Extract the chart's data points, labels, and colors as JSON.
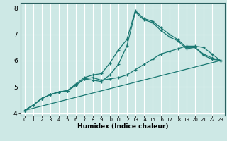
{
  "xlabel": "Humidex (Indice chaleur)",
  "background_color": "#cde8e5",
  "grid_color": "#ffffff",
  "line_color": "#1a7872",
  "xlim": [
    -0.5,
    23.5
  ],
  "ylim": [
    3.9,
    8.2
  ],
  "xticks": [
    0,
    1,
    2,
    3,
    4,
    5,
    6,
    7,
    8,
    9,
    10,
    11,
    12,
    13,
    14,
    15,
    16,
    17,
    18,
    19,
    20,
    21,
    22,
    23
  ],
  "yticks": [
    4,
    5,
    6,
    7,
    8
  ],
  "line1": {
    "x": [
      0,
      1,
      2,
      3,
      4,
      5,
      6,
      7,
      8,
      9,
      10,
      11,
      12,
      13,
      14,
      15,
      16,
      17,
      18,
      19,
      20,
      21,
      22,
      23
    ],
    "y": [
      4.1,
      4.3,
      4.55,
      4.7,
      4.8,
      4.85,
      5.05,
      5.3,
      5.35,
      5.25,
      5.3,
      5.35,
      5.45,
      5.65,
      5.85,
      6.05,
      6.25,
      6.35,
      6.45,
      6.55,
      6.55,
      6.5,
      6.25,
      6.0
    ]
  },
  "line2": {
    "x": [
      0,
      1,
      2,
      3,
      4,
      5,
      6,
      7,
      8,
      9,
      10,
      11,
      12,
      13,
      14,
      15,
      16,
      17,
      18,
      19,
      20,
      21,
      22,
      23
    ],
    "y": [
      4.1,
      4.3,
      4.55,
      4.7,
      4.8,
      4.85,
      5.1,
      5.35,
      5.45,
      5.5,
      5.9,
      6.4,
      6.8,
      7.9,
      7.6,
      7.5,
      7.25,
      7.0,
      6.8,
      6.5,
      6.5,
      6.25,
      6.1,
      6.0
    ]
  },
  "line3": {
    "x": [
      0,
      1,
      2,
      3,
      4,
      5,
      6,
      7,
      8,
      9,
      10,
      11,
      12,
      13,
      14,
      15,
      16,
      17,
      18,
      19,
      20,
      21,
      22,
      23
    ],
    "y": [
      4.1,
      4.3,
      4.55,
      4.7,
      4.8,
      4.85,
      5.05,
      5.3,
      5.25,
      5.2,
      5.45,
      5.85,
      6.55,
      7.85,
      7.55,
      7.45,
      7.15,
      6.9,
      6.75,
      6.45,
      6.5,
      6.2,
      6.05,
      6.0
    ]
  },
  "line4": {
    "x": [
      0,
      23
    ],
    "y": [
      4.1,
      6.0
    ]
  }
}
